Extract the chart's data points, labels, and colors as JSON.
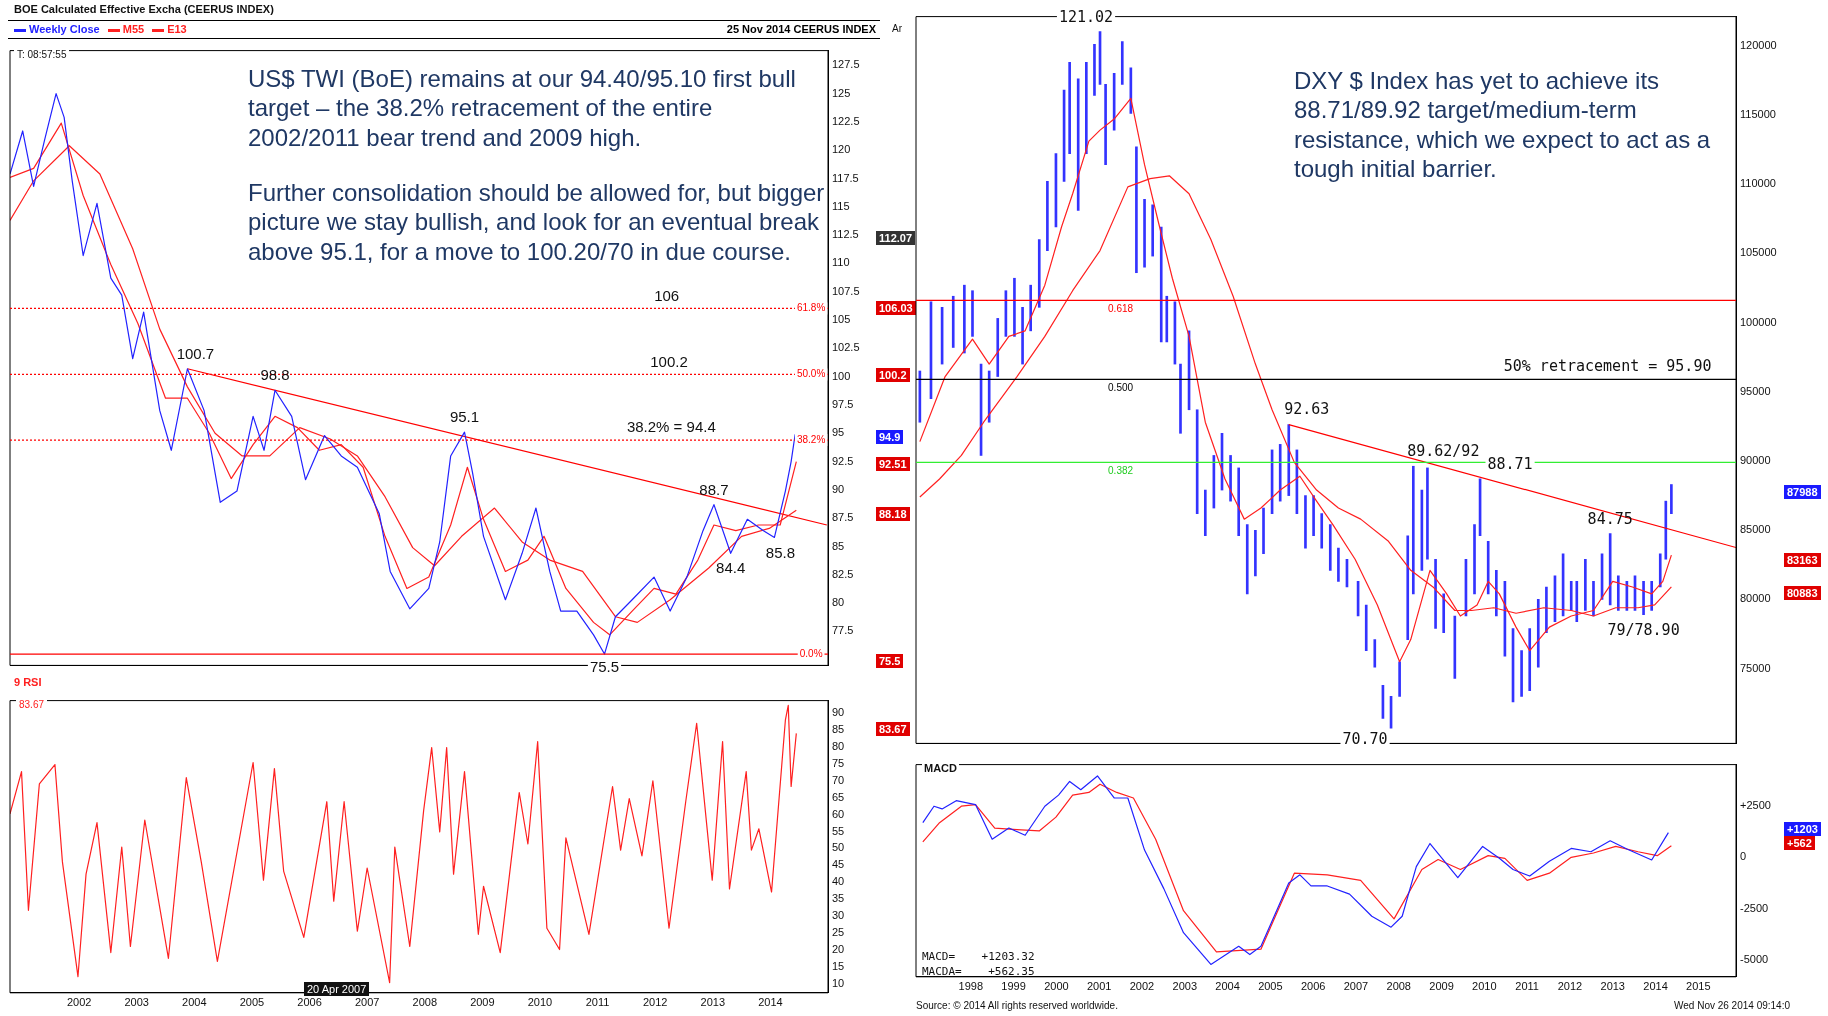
{
  "chart_data": [
    {
      "type": "line",
      "title": "BOE Calculated Effective Excha (CEERUS INDEX)",
      "subtitle": "25 Nov 2014 CEERUS INDEX",
      "legend": "top left",
      "tick_labels": "y",
      "xlim": [
        2001.3,
        2015.5
      ],
      "ylim": [
        74.5,
        128.8
      ],
      "yticks": [
        77.5,
        80,
        82.5,
        85,
        87.5,
        90,
        92.5,
        95,
        97.5,
        100,
        102.5,
        105,
        107.5,
        110,
        112.5,
        115,
        117.5,
        120,
        122.5,
        125,
        127.5
      ],
      "series": [
        {
          "name": "Weekly Close",
          "color": "#2222ff",
          "x": [
            2001.3,
            2001.52,
            2001.71,
            2001.9,
            2002.1,
            2002.24,
            2002.38,
            2002.57,
            2002.81,
            2003.05,
            2003.24,
            2003.43,
            2003.62,
            2003.9,
            2004.1,
            2004.38,
            2004.67,
            2004.95,
            2005.24,
            2005.52,
            2005.71,
            2005.9,
            2006.19,
            2006.43,
            2006.76,
            2007.05,
            2007.33,
            2007.71,
            2007.9,
            2008.24,
            2008.57,
            2008.76,
            2008.95,
            2009.19,
            2009.33,
            2009.52,
            2009.9,
            2010.19,
            2010.43,
            2010.67,
            2010.86,
            2011.14,
            2011.43,
            2011.62,
            2011.81,
            2012.1,
            2012.48,
            2012.76,
            2013.05,
            2013.33,
            2013.52,
            2013.81,
            2014.1,
            2014.38,
            2014.57,
            2014.76,
            2014.86,
            2014.93
          ],
          "values": [
            117.9,
            121.7,
            116.8,
            120.9,
            125.0,
            122.9,
            117.3,
            110.7,
            115.3,
            108.7,
            107.2,
            101.6,
            105.7,
            97.0,
            93.5,
            100.7,
            97.0,
            88.9,
            89.9,
            96.5,
            93.5,
            98.8,
            96.5,
            90.9,
            94.8,
            93.0,
            92.0,
            87.9,
            82.8,
            79.5,
            81.3,
            85.4,
            93.0,
            95.1,
            91.5,
            85.9,
            80.3,
            84.4,
            88.4,
            82.8,
            79.3,
            79.3,
            77.2,
            75.5,
            78.8,
            80.3,
            82.3,
            79.3,
            82.3,
            86.4,
            88.7,
            84.4,
            87.4,
            86.4,
            85.8,
            89.9,
            92.5,
            94.9
          ]
        },
        {
          "name": "M55",
          "color": "#ff2020",
          "x": [
            2001.3,
            2001.71,
            2002.33,
            2002.86,
            2003.43,
            2003.9,
            2004.38,
            2004.86,
            2005.33,
            2005.81,
            2006.33,
            2006.86,
            2007.33,
            2007.81,
            2008.29,
            2008.67,
            2009.14,
            2009.71,
            2010.19,
            2010.67,
            2011.24,
            2011.81,
            2012.19,
            2012.76,
            2013.43,
            2014.0,
            2014.48,
            2014.95
          ],
          "values": [
            113.8,
            117.3,
            120.4,
            117.9,
            111.3,
            104.2,
            99.1,
            95.0,
            93.0,
            93.0,
            95.5,
            94.5,
            93.0,
            89.4,
            84.9,
            83.3,
            85.9,
            88.4,
            85.4,
            83.8,
            82.8,
            78.8,
            78.3,
            80.3,
            83.1,
            85.9,
            86.6,
            88.2
          ]
        },
        {
          "name": "E13",
          "color": "#ff2020",
          "x": [
            2001.3,
            2001.71,
            2002.19,
            2002.57,
            2003.05,
            2003.52,
            2004.0,
            2004.38,
            2004.76,
            2005.14,
            2005.52,
            2005.9,
            2006.29,
            2006.67,
            2007.05,
            2007.43,
            2007.81,
            2008.19,
            2008.57,
            2008.95,
            2009.24,
            2009.52,
            2009.9,
            2010.29,
            2010.57,
            2010.95,
            2011.43,
            2011.71,
            2012.1,
            2012.48,
            2012.86,
            2013.24,
            2013.52,
            2013.9,
            2014.29,
            2014.67,
            2014.95
          ],
          "values": [
            117.6,
            118.4,
            122.4,
            116.0,
            109.9,
            104.7,
            98.1,
            98.1,
            95.0,
            91.0,
            94.0,
            96.5,
            95.5,
            93.5,
            94.0,
            92.0,
            85.9,
            81.3,
            82.3,
            86.9,
            92.0,
            87.4,
            82.8,
            83.8,
            85.9,
            81.3,
            78.3,
            77.2,
            79.3,
            81.3,
            80.8,
            83.8,
            86.9,
            86.4,
            86.9,
            86.9,
            92.5
          ]
        },
        {
          "type": "line",
          "color": "#ff0000",
          "x": [
            2004.38,
            2015.48
          ],
          "values": [
            100.7,
            86.9
          ]
        }
      ],
      "ref_lines": [
        {
          "axis": "y",
          "value": 106.03,
          "color": "#ff0000",
          "line_style": "dotted"
        },
        {
          "axis": "y",
          "value": 100.2,
          "color": "#ff0000",
          "line_style": "dotted"
        },
        {
          "axis": "y",
          "value": 94.4,
          "color": "#ff0000",
          "line_style": "dotted"
        },
        {
          "axis": "y",
          "value": 75.5,
          "color": "#ff0000",
          "line_style": "solid"
        }
      ],
      "annotations": [
        "T: 08:57:55",
        "Ar",
        "US$ TWI (BoE) remains at our 94.40/95.10 first bull target – the 38.2% retracement of the entire 2002/2011 bear trend and 2009  high.",
        "Further consolidation should be allowed for, but bigger picture we stay bullish, and look for an eventual break above 95.1, for a move to 100.20/70 in due course.",
        "112.07",
        "106.03",
        "100.2",
        "94.9",
        "92.51",
        "88.18",
        "75.5",
        {
          "text": "100.7",
          "x": 2004.38,
          "y": 100.7
        },
        {
          "text": "98.8",
          "x": 2005.9,
          "y": 98.8
        },
        {
          "text": "95.1",
          "x": 2009.19,
          "y": 95.1
        },
        {
          "text": "88.7",
          "x": 2013.52,
          "y": 88.7
        },
        {
          "text": "84.4",
          "x": 2013.81,
          "y": 84.4
        },
        {
          "text": "85.8",
          "x": 2014.57,
          "y": 85.8
        },
        {
          "text": "75.5",
          "x": 2011.62,
          "y": 75.5
        },
        {
          "text": "106",
          "x": 2012.7,
          "y": 106.03
        },
        {
          "text": "100.2",
          "x": 2012.74,
          "y": 100.2
        },
        {
          "text": "38.2% = 94.4",
          "x": 2012.78,
          "y": 94.4
        },
        {
          "text": "61.8%",
          "x": 2015.45,
          "y": 106.03
        },
        {
          "text": "50.0%",
          "x": 2015.45,
          "y": 100.2
        },
        {
          "text": "38.2%",
          "x": 2015.45,
          "y": 94.4
        },
        {
          "text": "0.0%",
          "x": 2015.45,
          "y": 75.5
        }
      ]
    },
    {
      "type": "line",
      "title": "9 RSI",
      "xlim": [
        2001.3,
        2015.5
      ],
      "ylim": [
        7.3,
        93.7
      ],
      "xticks": [
        {
          "value": 2002.5,
          "label": "2002"
        },
        {
          "value": 2003.5,
          "label": "2003"
        },
        {
          "value": 2004.5,
          "label": "2004"
        },
        {
          "value": 2005.5,
          "label": "2005"
        },
        {
          "value": 2006.5,
          "label": "2006"
        },
        {
          "value": 2007.5,
          "label": "2007"
        },
        {
          "value": 2008.5,
          "label": "2008"
        },
        {
          "value": 2009.5,
          "label": "2009"
        },
        {
          "value": 2010.5,
          "label": "2010"
        },
        {
          "value": 2011.5,
          "label": "2011"
        },
        {
          "value": 2012.5,
          "label": "2012"
        },
        {
          "value": 2013.5,
          "label": "2013"
        },
        {
          "value": 2014.5,
          "label": "2014"
        }
      ],
      "yticks": [
        10,
        15,
        20,
        25,
        30,
        35,
        40,
        45,
        50,
        55,
        60,
        65,
        70,
        75,
        80,
        85,
        90
      ],
      "series": [
        {
          "color": "#ff2020",
          "x": [
            2001.3,
            2001.5,
            2001.62,
            2001.81,
            2002.08,
            2002.21,
            2002.48,
            2002.62,
            2002.81,
            2003.05,
            2003.24,
            2003.39,
            2003.64,
            2004.05,
            2004.36,
            2004.62,
            2004.9,
            2005.52,
            2005.7,
            2005.89,
            2006.05,
            2006.4,
            2006.8,
            2006.92,
            2007.1,
            2007.33,
            2007.5,
            2007.89,
            2007.98,
            2008.24,
            2008.48,
            2008.62,
            2008.76,
            2008.88,
            2009.0,
            2009.19,
            2009.43,
            2009.52,
            2009.81,
            2010.14,
            2010.29,
            2010.46,
            2010.62,
            2010.84,
            2010.95,
            2011.35,
            2011.76,
            2011.9,
            2012.05,
            2012.27,
            2012.46,
            2012.74,
            2013.03,
            2013.22,
            2013.49,
            2013.67,
            2013.79,
            2014.08,
            2014.17,
            2014.3,
            2014.52,
            2014.76,
            2014.81,
            2014.86,
            2014.95
          ],
          "values": [
            60.2,
            72.7,
            31.7,
            69.1,
            74.8,
            46.0,
            12.1,
            42.4,
            57.6,
            19.2,
            50.4,
            21.0,
            58.4,
            17.5,
            70.9,
            46.0,
            16.6,
            75.4,
            40.6,
            73.6,
            43.3,
            23.7,
            63.8,
            34.4,
            63.8,
            25.5,
            44.2,
            10.3,
            50.4,
            21.0,
            61.1,
            79.8,
            54.9,
            79.8,
            42.4,
            72.7,
            24.6,
            38.8,
            19.2,
            66.5,
            51.3,
            81.6,
            26.4,
            20.1,
            53.1,
            24.6,
            68.3,
            49.5,
            64.7,
            47.8,
            70.0,
            26.4,
            63.8,
            87.0,
            40.6,
            81.6,
            38.0,
            72.7,
            49.5,
            55.8,
            37.1,
            87.9,
            92.3,
            68.3,
            84
          ]
        }
      ],
      "annotations": [
        "83.67",
        "20 Apr 2007",
        "83.67"
      ]
    },
    {
      "type": "bar",
      "tick_labels": "y",
      "xlim": [
        1997.22,
        2016.38
      ],
      "ylim": [
        69600,
        122100
      ],
      "yticks": [
        75000,
        80000,
        85000,
        90000,
        95000,
        100000,
        105000,
        110000,
        115000,
        120000
      ],
      "series": [
        {
          "color": "#3333ff",
          "base": [
            92800,
            94500,
            97000,
            98200,
            97800,
            99000,
            90400,
            92800,
            96100,
            99000,
            99000,
            97000,
            99400,
            101100,
            105200,
            106900,
            110200,
            112200,
            108100,
            112200,
            116400,
            117200,
            111400,
            113900,
            117200,
            115100,
            103600,
            104000,
            104800,
            98600,
            98600,
            97000,
            92000,
            93700,
            86200,
            84600,
            86600,
            87900,
            87100,
            84600,
            80400,
            81700,
            83300,
            86200,
            87100,
            87500,
            86200,
            83700,
            84600,
            83700,
            82100,
            81300,
            80900,
            78800,
            76300,
            75100,
            71400,
            70700,
            73000,
            77100,
            80400,
            82100,
            82900,
            77900,
            77600,
            74300,
            78800,
            80400,
            84600,
            80400,
            78800,
            75900,
            72600,
            73000,
            73400,
            75100,
            77600,
            78400,
            78800,
            79200,
            78400,
            79200,
            78800,
            80000,
            79600,
            79200,
            79200,
            79200,
            78900,
            79200,
            80900,
            82900,
            86200
          ],
          "x": [
            1997.31,
            1997.57,
            1997.83,
            1998.09,
            1998.35,
            1998.54,
            1998.74,
            1998.93,
            1999.13,
            1999.32,
            1999.52,
            1999.71,
            1999.9,
            2000.1,
            2000.29,
            2000.49,
            2000.68,
            2000.81,
            2001.01,
            2001.2,
            2001.39,
            2001.52,
            2001.65,
            2001.85,
            2002.04,
            2002.24,
            2002.37,
            2002.56,
            2002.75,
            2002.95,
            2003.08,
            2003.27,
            2003.4,
            2003.6,
            2003.79,
            2003.98,
            2004.18,
            2004.37,
            2004.57,
            2004.76,
            2004.96,
            2005.15,
            2005.34,
            2005.54,
            2005.73,
            2005.93,
            2006.12,
            2006.32,
            2006.51,
            2006.7,
            2006.9,
            2007.09,
            2007.29,
            2007.55,
            2007.74,
            2007.94,
            2008.13,
            2008.32,
            2008.52,
            2008.71,
            2008.84,
            2009.04,
            2009.17,
            2009.36,
            2009.55,
            2009.81,
            2010.07,
            2010.27,
            2010.4,
            2010.59,
            2010.78,
            2010.98,
            2011.17,
            2011.37,
            2011.56,
            2011.76,
            2011.95,
            2012.15,
            2012.34,
            2012.53,
            2012.66,
            2012.86,
            2013.05,
            2013.25,
            2013.44,
            2013.63,
            2013.83,
            2014.02,
            2014.22,
            2014.41,
            2014.61,
            2014.74,
            2014.87
          ],
          "values": [
            3700,
            7000,
            4100,
            3700,
            4900,
            3300,
            6600,
            3700,
            4200,
            3300,
            4200,
            4100,
            3300,
            4900,
            5000,
            5300,
            6600,
            6600,
            9500,
            6600,
            3700,
            3820,
            5800,
            4100,
            3100,
            3300,
            9100,
            4900,
            3700,
            8300,
            3300,
            4500,
            5000,
            5700,
            7500,
            3300,
            3800,
            4100,
            3300,
            4900,
            5000,
            3300,
            3300,
            4600,
            4100,
            5130,
            4600,
            3800,
            2900,
            2500,
            3300,
            2400,
            2000,
            2500,
            3300,
            2000,
            2400,
            2300,
            2500,
            7500,
            9220,
            5800,
            6600,
            5000,
            2800,
            4500,
            4100,
            5000,
            4110,
            3800,
            3300,
            5400,
            5300,
            3300,
            4500,
            4900,
            3300,
            3300,
            4500,
            2100,
            2900,
            3700,
            2500,
            3300,
            5150,
            2500,
            2100,
            2500,
            2400,
            2100,
            2400,
            4200,
            2100
          ]
        },
        {
          "type": "line",
          "color": "#ff2020",
          "x": [
            1997.31,
            1997.9,
            1998.54,
            1998.93,
            1999.39,
            1999.77,
            2000.23,
            2000.62,
            2000.88,
            2001.26,
            2001.52,
            2001.85,
            2002.24,
            2002.56,
            2002.88,
            2003.21,
            2003.6,
            2003.98,
            2004.44,
            2004.89,
            2005.28,
            2005.73,
            2006.19,
            2006.58,
            2006.96,
            2007.48,
            2008.0,
            2008.52,
            2008.78,
            2009.23,
            2009.62,
            2009.94,
            2010.33,
            2010.59,
            2010.85,
            2011.24,
            2011.56,
            2012.02,
            2012.53,
            2013.05,
            2013.5,
            2013.96,
            2014.41,
            2014.67,
            2014.87
          ],
          "values": [
            91400,
            96100,
            98800,
            97000,
            99000,
            99400,
            102700,
            106900,
            109300,
            113100,
            113900,
            114700,
            116200,
            111400,
            107300,
            103200,
            99000,
            92800,
            88700,
            85800,
            86600,
            87900,
            88900,
            87100,
            85400,
            82900,
            79600,
            75500,
            77100,
            82100,
            80400,
            78800,
            79600,
            81300,
            80400,
            78000,
            76300,
            78000,
            78800,
            79200,
            81300,
            80900,
            80400,
            81300,
            83200
          ]
        },
        {
          "type": "line",
          "color": "#ff2020",
          "x": [
            1997.31,
            1997.77,
            1998.28,
            1998.8,
            1999.58,
            2000.23,
            2000.88,
            2001.52,
            2002.17,
            2002.69,
            2003.14,
            2003.6,
            2004.11,
            2004.63,
            2005.15,
            2005.54,
            2006.06,
            2006.58,
            2007.09,
            2007.61,
            2008.26,
            2008.78,
            2009.3,
            2009.81,
            2010.2,
            2010.72,
            2011.24,
            2011.89,
            2012.53,
            2013.05,
            2013.57,
            2014.09,
            2014.48,
            2014.87
          ],
          "values": [
            87400,
            88700,
            90400,
            92800,
            96100,
            99000,
            102300,
            105200,
            109800,
            110400,
            110600,
            109300,
            106000,
            101900,
            97000,
            93700,
            89900,
            87900,
            86600,
            85800,
            84200,
            82100,
            80900,
            79200,
            79200,
            79400,
            79000,
            79400,
            79200,
            78800,
            79400,
            79400,
            79600,
            80900
          ]
        },
        {
          "type": "line",
          "color": "#ff0000",
          "x": [
            2005.93,
            2016.38
          ],
          "values": [
            92630,
            83750
          ]
        }
      ],
      "ref_lines": [
        {
          "axis": "y",
          "value": 101600,
          "color": "#ff0000",
          "line_style": "solid"
        },
        {
          "axis": "y",
          "value": 95900,
          "color": "#000000",
          "line_style": "solid"
        },
        {
          "axis": "y",
          "value": 89900,
          "color": "#33ee33",
          "line_style": "solid"
        }
      ],
      "annotations": [
        "DXY $ Index has yet to achieve its 88.71/89.92 target/medium-term resistance, which we expect to act as a tough initial barrier.",
        "87988",
        "83163",
        "80883",
        {
          "text": "121.02",
          "x": 2001.52,
          "y": 121020
        },
        {
          "text": "92.63",
          "x": 2005.93,
          "y": 92630
        },
        {
          "text": "89.62/92",
          "x": 2008.84,
          "y": 89620
        },
        {
          "text": "88.71",
          "x": 2010.4,
          "y": 88710
        },
        {
          "text": "84.75",
          "x": 2013.44,
          "y": 84750
        },
        {
          "text": "79/78.90",
          "x": 2014.22,
          "y": 78900
        },
        {
          "text": "70.70",
          "x": 2008.32,
          "y": 70700
        },
        {
          "text": "50% retracement = 95.90",
          "x": 2013.38,
          "y": 95900
        },
        {
          "text": "0.618",
          "x": 2002.0,
          "y": 101600
        },
        {
          "text": "0.500",
          "x": 2002.0,
          "y": 95900
        },
        {
          "text": "0.382",
          "x": 2002.0,
          "y": 89900
        }
      ]
    },
    {
      "type": "line",
      "title": "MACD",
      "xlim": [
        1997.22,
        2016.38
      ],
      "ylim": [
        -5800,
        4500
      ],
      "xticks": [
        {
          "value": 1998.5,
          "label": "1998"
        },
        {
          "value": 1999.5,
          "label": "1999"
        },
        {
          "value": 2000.5,
          "label": "2000"
        },
        {
          "value": 2001.5,
          "label": "2001"
        },
        {
          "value": 2002.5,
          "label": "2002"
        },
        {
          "value": 2003.5,
          "label": "2003"
        },
        {
          "value": 2004.5,
          "label": "2004"
        },
        {
          "value": 2005.5,
          "label": "2005"
        },
        {
          "value": 2006.5,
          "label": "2006"
        },
        {
          "value": 2007.5,
          "label": "2007"
        },
        {
          "value": 2008.5,
          "label": "2008"
        },
        {
          "value": 2009.5,
          "label": "2009"
        },
        {
          "value": 2010.5,
          "label": "2010"
        },
        {
          "value": 2011.5,
          "label": "2011"
        },
        {
          "value": 2012.5,
          "label": "2012"
        },
        {
          "value": 2013.5,
          "label": "2013"
        },
        {
          "value": 2014.5,
          "label": "2014"
        },
        {
          "value": 2015.5,
          "label": "2015"
        }
      ],
      "yticks": [
        -5000,
        -2500,
        0,
        {
          "value": 2500,
          "label": "+2500"
        }
      ],
      "series": [
        {
          "color": "#2222ff",
          "x": [
            1997.38,
            1997.64,
            1997.83,
            1998.16,
            1998.61,
            1999.0,
            1999.39,
            1999.77,
            2000.23,
            2000.55,
            2000.81,
            2001.07,
            2001.46,
            2001.85,
            2002.17,
            2002.56,
            2003.01,
            2003.47,
            2004.11,
            2004.76,
            2005.02,
            2005.28,
            2005.93,
            2006.19,
            2006.45,
            2006.83,
            2007.35,
            2007.87,
            2008.32,
            2008.58,
            2008.91,
            2009.23,
            2009.88,
            2010.46,
            2010.85,
            2011.17,
            2011.56,
            2012.02,
            2012.53,
            2012.99,
            2013.44,
            2013.83,
            2014.41,
            2014.8
          ],
          "values": [
            1680,
            2480,
            2350,
            2750,
            2560,
            880,
            1420,
            1070,
            2480,
            3020,
            3680,
            3280,
            3950,
            2880,
            2880,
            350,
            -1520,
            -3660,
            -5200,
            -4320,
            -4720,
            -4320,
            -1250,
            -850,
            -1390,
            -1390,
            -1790,
            -2860,
            -3390,
            -2860,
            -450,
            670,
            -990,
            530,
            -50,
            -590,
            -910,
            -190,
            430,
            270,
            800,
            400,
            -130,
            1200
          ]
        },
        {
          "color": "#ff2020",
          "x": [
            1997.38,
            1997.77,
            1998.28,
            1998.61,
            1999.06,
            1999.58,
            2000.1,
            2000.49,
            2000.88,
            2001.26,
            2001.52,
            2001.91,
            2002.3,
            2002.82,
            2003.47,
            2004.24,
            2005.28,
            2006.06,
            2006.83,
            2007.61,
            2008.39,
            2009.04,
            2009.42,
            2009.94,
            2010.59,
            2010.98,
            2011.5,
            2012.02,
            2012.53,
            2013.05,
            2013.57,
            2014.09,
            2014.54,
            2014.87
          ],
          "values": [
            750,
            1680,
            2480,
            2560,
            1420,
            1340,
            1280,
            1950,
            3020,
            3150,
            3550,
            3150,
            2880,
            880,
            -2590,
            -4590,
            -4460,
            -770,
            -850,
            -1120,
            -2990,
            -590,
            -110,
            -590,
            80,
            -50,
            -1120,
            -770,
            0,
            210,
            530,
            270,
            80,
            560
          ]
        }
      ],
      "annotations": [
        "MACD=    +1203.32",
        "MACDA=    +562.35",
        "Source: © 2014 All rights reserved worldwide.",
        "Wed Nov 26 2014 09:14:0",
        "+1203",
        "+562"
      ]
    }
  ]
}
